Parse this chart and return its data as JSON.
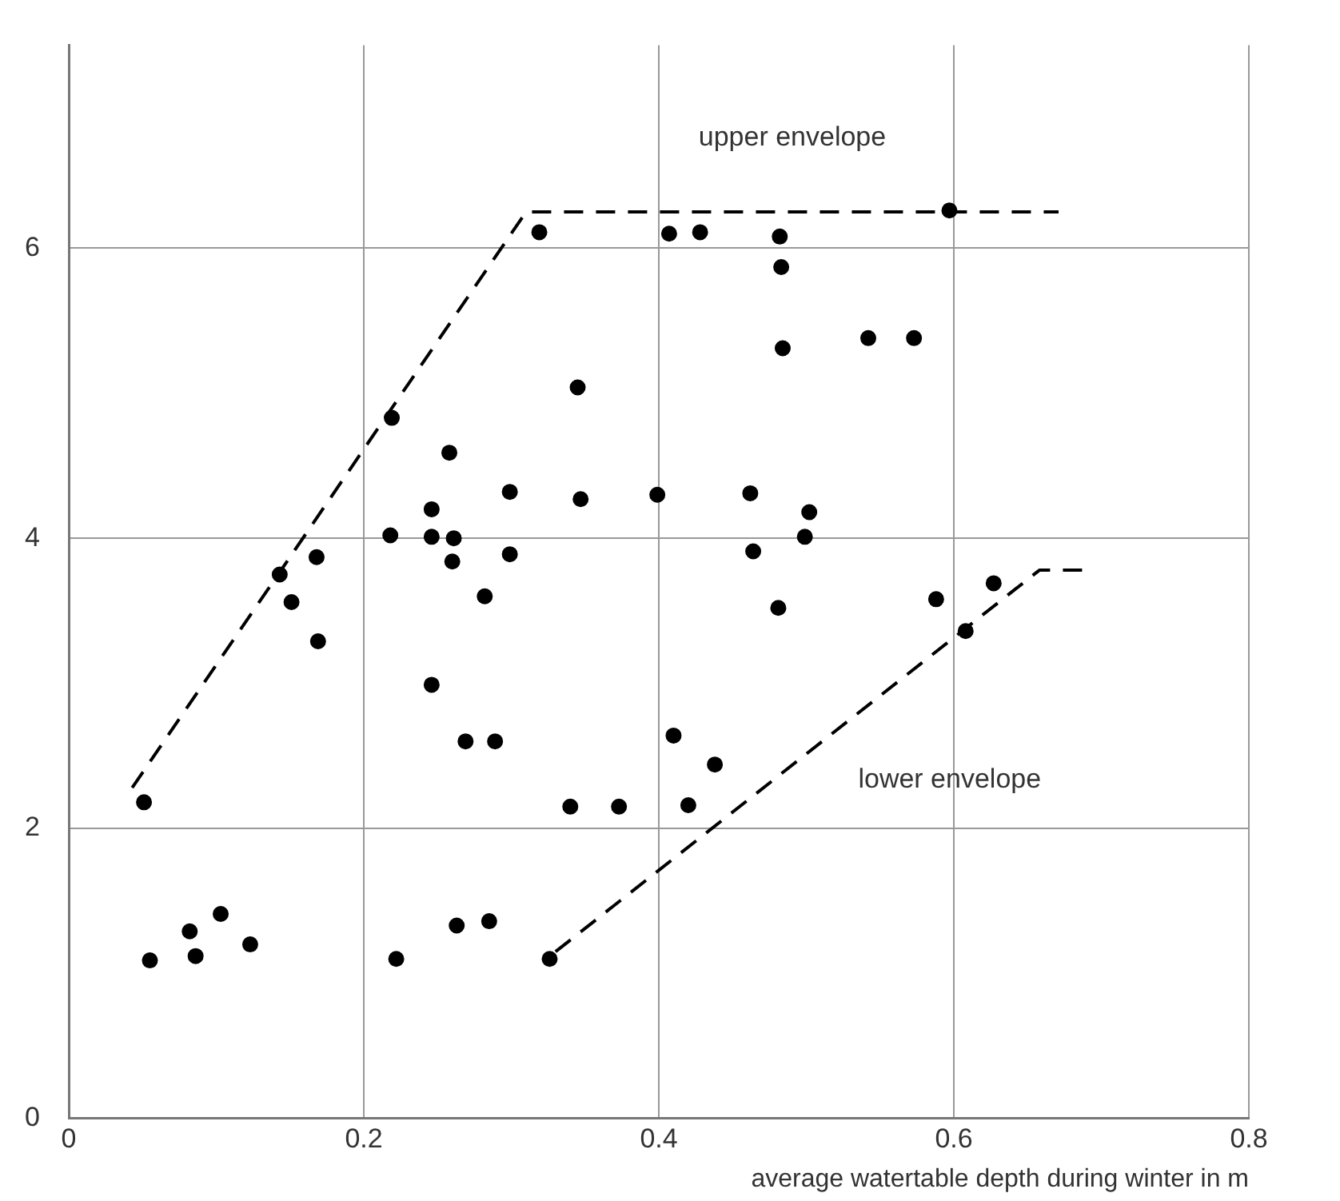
{
  "chart_data": {
    "type": "scatter",
    "xlabel": "average watertable depth during winter in m",
    "xlim": [
      0,
      0.8
    ],
    "xticks": [
      0,
      0.2,
      0.4,
      0.6,
      0.8
    ],
    "ylim": [
      0,
      7.4
    ],
    "yticks": [
      0,
      2,
      4,
      6
    ],
    "grid": true,
    "legend": false,
    "marker": "circle",
    "series": [
      {
        "color": "#000000",
        "x": [
          0.319,
          0.407,
          0.428,
          0.482,
          0.483,
          0.597,
          0.484,
          0.542,
          0.573,
          0.345,
          0.219,
          0.258,
          0.299,
          0.347,
          0.399,
          0.462,
          0.246,
          0.218,
          0.246,
          0.261,
          0.26,
          0.299,
          0.168,
          0.143,
          0.151,
          0.282,
          0.169,
          0.502,
          0.499,
          0.464,
          0.481,
          0.588,
          0.627,
          0.608,
          0.246,
          0.269,
          0.289,
          0.41,
          0.438,
          0.051,
          0.34,
          0.373,
          0.42,
          0.055,
          0.082,
          0.086,
          0.103,
          0.123,
          0.222,
          0.263,
          0.285,
          0.326
        ],
        "values": [
          6.11,
          6.1,
          6.11,
          6.08,
          5.87,
          6.26,
          5.31,
          5.38,
          5.38,
          5.04,
          4.83,
          4.59,
          4.32,
          4.27,
          4.3,
          4.31,
          4.2,
          4.02,
          4.01,
          4.0,
          3.84,
          3.89,
          3.87,
          3.75,
          3.56,
          3.6,
          3.29,
          4.18,
          4.01,
          3.91,
          3.52,
          3.58,
          3.69,
          3.36,
          2.99,
          2.6,
          2.6,
          2.64,
          2.44,
          2.18,
          2.15,
          2.15,
          2.16,
          1.09,
          1.29,
          1.12,
          1.41,
          1.2,
          1.1,
          1.33,
          1.36,
          1.1
        ]
      },
      {
        "type": "line",
        "name": "upper envelope",
        "color": "#000000",
        "line_style": "dashed",
        "marker": "none",
        "x": [
          0.043,
          0.31,
          0.671
        ],
        "values": [
          2.28,
          6.25,
          6.25
        ]
      },
      {
        "type": "line",
        "name": "lower envelope",
        "color": "#000000",
        "line_style": "dashed",
        "marker": "none",
        "x": [
          0.33,
          0.658,
          0.688
        ],
        "values": [
          1.15,
          3.78,
          3.78
        ]
      }
    ]
  }
}
